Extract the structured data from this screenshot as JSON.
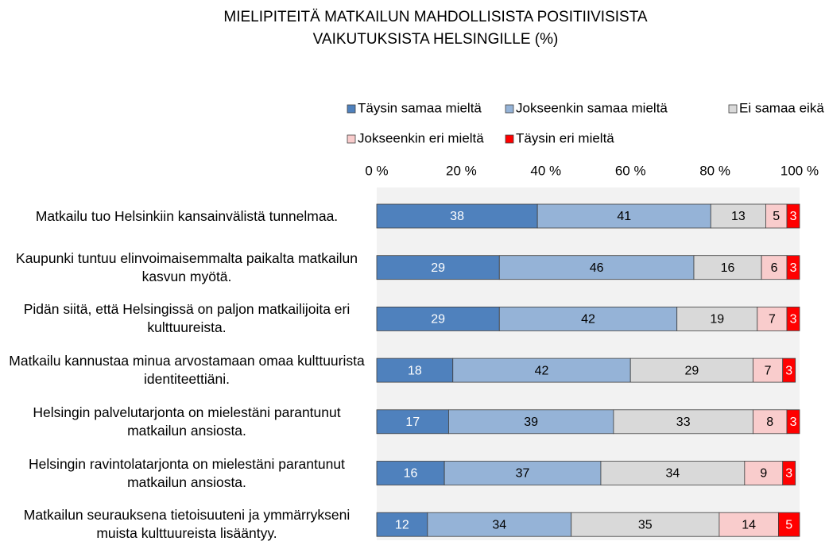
{
  "chart_data": {
    "type": "stacked-barh",
    "title": [
      "MIELIPITEITÄ  MATKAILUN  MAHDOLLISISTA POSITIIVISISTA",
      "VAIKUTUKSISTA HELSINGILLE (%)"
    ],
    "categories": [
      "Matkailu tuo Helsinkiin kansainvälistä tunnelmaa.",
      "Kaupunki tuntuu elinvoimaisemmalta paikalta matkailun kasvun myötä.",
      "Pidän siitä, että Helsingissä on paljon matkailijoita eri kulttuureista.",
      "Matkailu kannustaa minua arvostamaan omaa kulttuurista identiteettiäni.",
      "Helsingin palvelutarjonta on mielestäni parantunut matkailun ansiosta.",
      "Helsingin ravintolatarjonta on mielestäni parantunut matkailun ansiosta.",
      "Matkailun seurauksena tietoisuuteni ja ymmärrykseni muista kulttuureista lisääntyy."
    ],
    "series": [
      {
        "name": "Täysin samaa mieltä",
        "color": "#4f81bd",
        "label_color": "#ffffff",
        "values": [
          38,
          29,
          29,
          18,
          17,
          16,
          12
        ]
      },
      {
        "name": "Jokseenkin samaa mieltä",
        "color": "#95b3d7",
        "label_color": "#000000",
        "values": [
          41,
          46,
          42,
          42,
          39,
          37,
          34
        ]
      },
      {
        "name": "Ei samaa eikä eri mieltä",
        "color": "#d9d9d9",
        "label_color": "#000000",
        "values": [
          13,
          16,
          19,
          29,
          33,
          34,
          35
        ]
      },
      {
        "name": "Jokseenkin eri mieltä",
        "color": "#f9cccc",
        "label_color": "#000000",
        "values": [
          5,
          6,
          7,
          7,
          8,
          9,
          14
        ]
      },
      {
        "name": "Täysin eri mieltä",
        "color": "#ff0000",
        "label_color": "#ffffff",
        "values": [
          3,
          3,
          3,
          3,
          3,
          3,
          5
        ]
      }
    ],
    "xlim": [
      0,
      100
    ],
    "xticks": [
      {
        "value": 0,
        "label": "0 %"
      },
      {
        "value": 20,
        "label": "20 %"
      },
      {
        "value": 40,
        "label": "40 %"
      },
      {
        "value": 60,
        "label": "60 %"
      },
      {
        "value": 80,
        "label": "80 %"
      },
      {
        "value": 100,
        "label": "100 %"
      }
    ],
    "legend": "top"
  }
}
